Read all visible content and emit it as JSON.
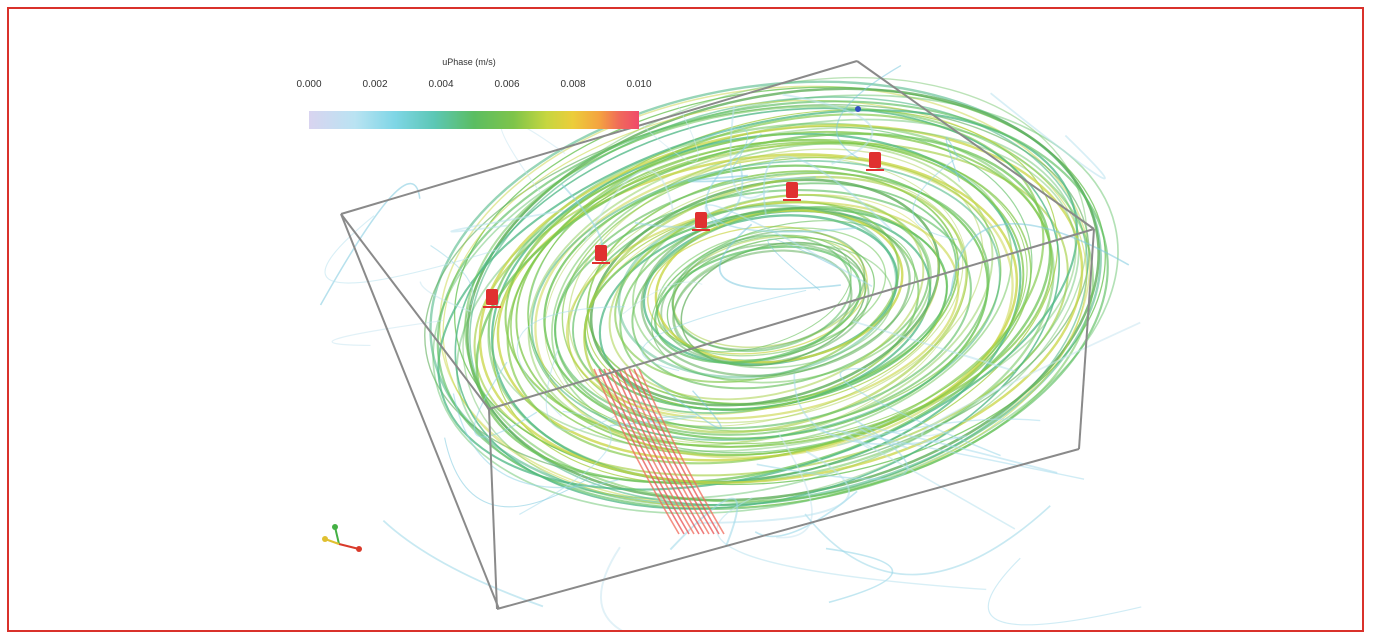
{
  "colorbar": {
    "title": "uPhase (m/s)",
    "ticks": [
      "0.000",
      "0.002",
      "0.004",
      "0.006",
      "0.008",
      "0.010"
    ],
    "range": [
      0.0,
      0.01
    ],
    "colors": [
      "#d9d4f0",
      "#b9e3f2",
      "#7fd6e6",
      "#5cc7b5",
      "#5bbd62",
      "#7ec44a",
      "#c6d640",
      "#eccd3a",
      "#f4a340",
      "#f06a5a",
      "#f04a6a"
    ]
  },
  "scene": {
    "border_color": "#d9312b",
    "box_color": "#8a8a8a",
    "inlet_color": "#e03030",
    "outlet_color": "#3050c0"
  },
  "axes_triad": {
    "x_color": "#d93a2b",
    "y_color": "#44b044",
    "z_color": "#e0c030"
  }
}
